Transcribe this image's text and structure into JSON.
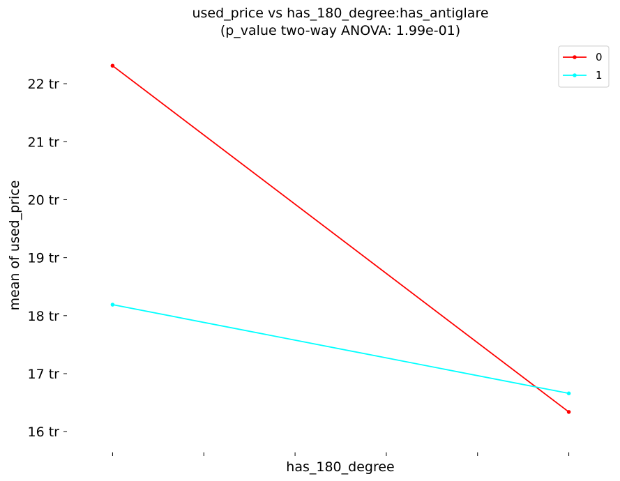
{
  "chart_data": {
    "type": "line",
    "title_line1": "used_price vs has_180_degree:has_antiglare",
    "title_line2": "(p_value two-way ANOVA: 1.99e-01)",
    "xlabel": "has_180_degree",
    "ylabel": "mean of used_price",
    "x": [
      0,
      1
    ],
    "xlim": [
      -0.1,
      1.1
    ],
    "x_ticks": [
      0,
      0.2,
      0.4,
      0.6,
      0.8,
      1.0
    ],
    "ylim": [
      15.75,
      22.65
    ],
    "y_ticks": [
      {
        "value": 16,
        "label": "16 tr"
      },
      {
        "value": 17,
        "label": "17 tr"
      },
      {
        "value": 18,
        "label": "18 tr"
      },
      {
        "value": 19,
        "label": "19 tr"
      },
      {
        "value": 20,
        "label": "20 tr"
      },
      {
        "value": 21,
        "label": "21 tr"
      },
      {
        "value": 22,
        "label": "22 tr"
      }
    ],
    "grid": false,
    "legend_position": "top-right",
    "series": [
      {
        "name": "0",
        "color": "#ff0000",
        "values": [
          22.31,
          16.34
        ]
      },
      {
        "name": "1",
        "color": "#00ffff",
        "values": [
          18.19,
          16.66
        ]
      }
    ]
  }
}
